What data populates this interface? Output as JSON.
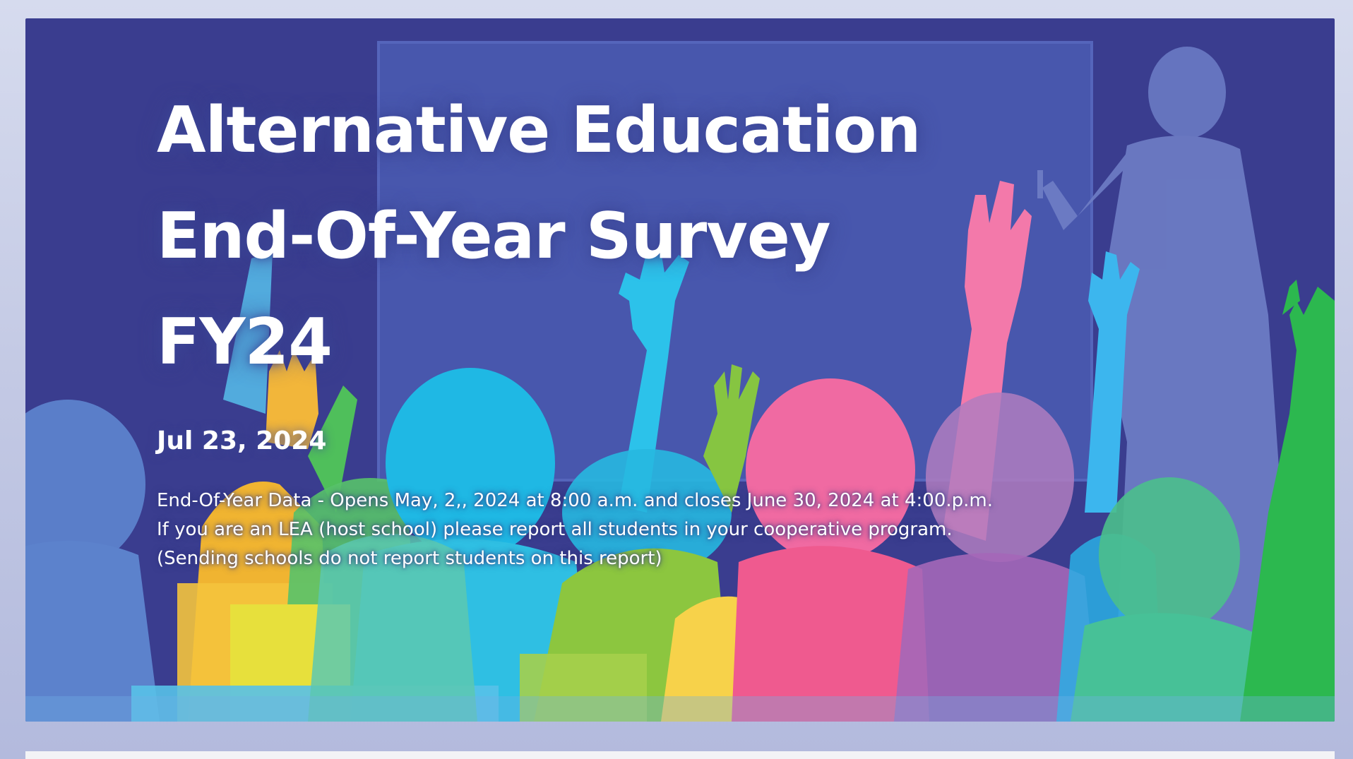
{
  "banner": {
    "title_lines": [
      "Alternative Education",
      "End-Of-Year Survey",
      "FY24"
    ],
    "date": "Jul 23, 2024",
    "description_lines": [
      "End-Of-Year Data - Opens May, 2,, 2024 at 8:00 a.m. and closes June 30, 2024 at 4:00.p.m.",
      "If you are an LEA (host school) please report all students in your cooperative program.",
      "(Sending schools do not report students on this report)"
    ]
  },
  "colors": {
    "background": "#3a3d8f",
    "board": "#4858b0",
    "text": "#ffffff"
  },
  "icons": {
    "banner_art": "classroom-raised-hands-illustration"
  }
}
